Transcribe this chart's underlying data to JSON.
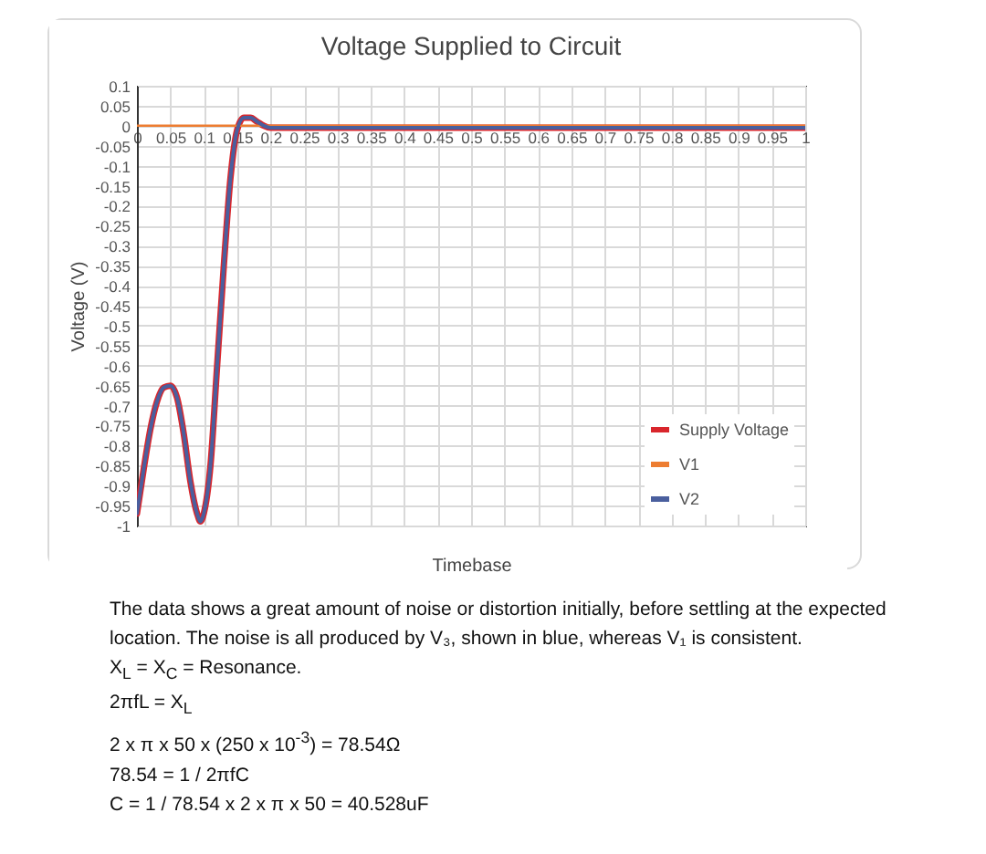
{
  "chart_data": {
    "type": "line",
    "title": "Voltage Supplied to Circuit",
    "xlabel": "Timebase",
    "ylabel": "Voltage (V)",
    "x": [
      0,
      0.01,
      0.02,
      0.03,
      0.04,
      0.05,
      0.06,
      0.07,
      0.08,
      0.09,
      0.095,
      0.1,
      0.11,
      0.12,
      0.13,
      0.14,
      0.15,
      0.16,
      0.17,
      0.18,
      0.19,
      0.2,
      0.3,
      0.5,
      0.7,
      1
    ],
    "series": [
      {
        "name": "Supply Voltage",
        "color": "#d9262c",
        "values": [
          -0.97,
          -0.86,
          -0.76,
          -0.69,
          -0.655,
          -0.65,
          -0.68,
          -0.77,
          -0.89,
          -0.97,
          -0.99,
          -0.97,
          -0.85,
          -0.6,
          -0.35,
          -0.13,
          -0.01,
          0.02,
          0.02,
          0.01,
          0,
          -0.005,
          -0.005,
          -0.005,
          -0.005,
          -0.005
        ]
      },
      {
        "name": "V1",
        "color": "#ed7d31",
        "values": [
          0,
          0,
          0,
          0,
          0,
          0,
          0,
          0,
          0,
          0,
          0,
          0,
          0,
          0,
          0,
          0,
          0,
          0,
          0,
          0,
          0,
          0,
          0,
          0,
          0,
          0
        ]
      },
      {
        "name": "V2",
        "color": "#4a5f9e",
        "values": [
          -0.97,
          -0.86,
          -0.76,
          -0.69,
          -0.655,
          -0.65,
          -0.68,
          -0.77,
          -0.89,
          -0.97,
          -0.99,
          -0.97,
          -0.85,
          -0.6,
          -0.35,
          -0.13,
          -0.01,
          0.02,
          0.02,
          0.01,
          0,
          -0.005,
          -0.005,
          -0.005,
          -0.005,
          -0.005
        ]
      }
    ],
    "xlim": [
      0,
      1
    ],
    "xticks": [
      0,
      0.05,
      0.1,
      0.15,
      0.2,
      0.25,
      0.3,
      0.35,
      0.4,
      0.45,
      0.5,
      0.55,
      0.6,
      0.65,
      0.7,
      0.75,
      0.8,
      0.85,
      0.9,
      0.95,
      1
    ],
    "ylim": [
      -1,
      0.1
    ],
    "yticks": [
      0.1,
      0.05,
      0,
      -0.05,
      -0.1,
      -0.15,
      -0.2,
      -0.25,
      -0.3,
      -0.35,
      -0.4,
      -0.45,
      -0.5,
      -0.55,
      -0.6,
      -0.65,
      -0.7,
      -0.75,
      -0.8,
      -0.85,
      -0.9,
      -0.95,
      -1
    ],
    "grid": true,
    "legend": "bottom right",
    "annotations": [
      "The data shows a great amount of noise or distortion initially, before settling at the expected location. The noise is all produced by V₃, shown in blue, whereas V₁ is consistent.",
      "X$_{L}$ = X$_{C}$ = Resonance.",
      "2πfL = X$_{L}$",
      "2 x π x 50 x (250 x 10$^{-3}$) = 78.54Ω",
      "78.54 = 1 / 2πfC",
      "C = 1 / 78.54 x 2 x π x 50 = 40.528uF"
    ]
  }
}
